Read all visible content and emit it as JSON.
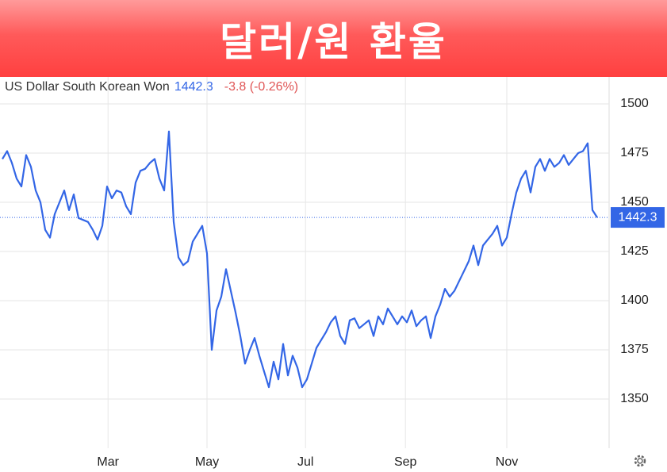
{
  "header": {
    "title": "달러/원 환율"
  },
  "chart_data": {
    "type": "line",
    "title": "US Dollar South Korean Won",
    "last_value": 1442.3,
    "change": "-3.8 (-0.26%)",
    "series": [
      {
        "name": "US Dollar South Korean Won",
        "color": "#3366e6",
        "values": [
          1472,
          1476,
          1470,
          1462,
          1458,
          1474,
          1468,
          1456,
          1450,
          1436,
          1432,
          1444,
          1450,
          1456,
          1446,
          1454,
          1442,
          1441,
          1440,
          1436,
          1431,
          1438,
          1458,
          1452,
          1456,
          1455,
          1448,
          1444,
          1460,
          1466,
          1467,
          1470,
          1472,
          1462,
          1456,
          1486,
          1440,
          1422,
          1418,
          1420,
          1430,
          1434,
          1438,
          1424,
          1375,
          1395,
          1402,
          1416,
          1405,
          1394,
          1382,
          1368,
          1375,
          1381,
          1372,
          1364,
          1356,
          1369,
          1360,
          1378,
          1362,
          1372,
          1366,
          1356,
          1360,
          1368,
          1376,
          1380,
          1384,
          1389,
          1392,
          1382,
          1378,
          1390,
          1391,
          1386,
          1388,
          1390,
          1382,
          1392,
          1388,
          1396,
          1392,
          1388,
          1392,
          1389,
          1395,
          1387,
          1390,
          1392,
          1381,
          1392,
          1398,
          1406,
          1402,
          1405,
          1410,
          1415,
          1420,
          1428,
          1418,
          1428,
          1431,
          1434,
          1438,
          1428,
          1432,
          1444,
          1455,
          1462,
          1466,
          1455,
          1468,
          1472,
          1466,
          1472,
          1468,
          1470,
          1474,
          1469,
          1472,
          1475,
          1476,
          1480,
          1446,
          1442.3
        ]
      }
    ],
    "xlim": [
      -0.5,
      127.5
    ],
    "xticks": [
      {
        "value": 22.2,
        "label": "Mar"
      },
      {
        "value": 43,
        "label": "May"
      },
      {
        "value": 63.7,
        "label": "Jul"
      },
      {
        "value": 84.7,
        "label": "Sep"
      },
      {
        "value": 106,
        "label": "Nov"
      }
    ],
    "ylim": [
      1325,
      1513.7
    ],
    "yticks": [
      1350,
      1375,
      1400,
      1425,
      1450,
      1475,
      1500
    ],
    "grid": true
  }
}
